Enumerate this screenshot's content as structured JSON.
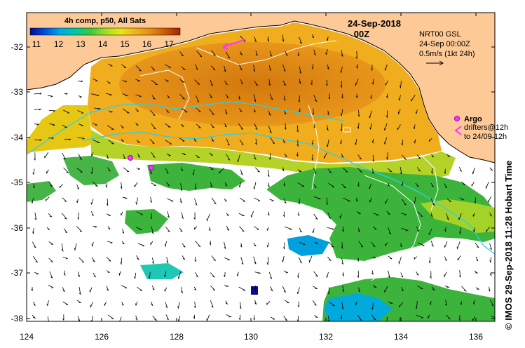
{
  "legend": {
    "title": "4h comp, p50, All Sats",
    "ticks": [
      "11",
      "12",
      "13",
      "14",
      "15",
      "16",
      "17"
    ],
    "colors": [
      "#0a0a8c",
      "#0050dc",
      "#00aae6",
      "#00c8a0",
      "#3cc83c",
      "#a0dc28",
      "#e6e614",
      "#f0b41e",
      "#e68c14",
      "#c85a0a",
      "#aa1e0a"
    ]
  },
  "date": {
    "line1": "24-Sep-2018",
    "line2": "00Z"
  },
  "info": {
    "line1": "NRT00 GSL",
    "line2": "24-Sep 00:00Z",
    "line3": "0.5m/s (1kt 24h)"
  },
  "argo": {
    "label": "Argo",
    "drifters_line1": "drifters@12h",
    "drifters_line2": "to 24/09 12h"
  },
  "axes": {
    "y_ticks": [
      "-32",
      "-33",
      "-34",
      "-35",
      "-36",
      "-37",
      "-38"
    ],
    "x_ticks": [
      "124",
      "126",
      "128",
      "130",
      "132",
      "134",
      "136"
    ]
  },
  "credit": "© IMOS 29-Sep-2018 11:28 Hobart Time",
  "colors": {
    "land": "#fdc996",
    "warm": "#e58f14",
    "mid": "#f0ad1e",
    "green": "#3cb43c",
    "lime": "#a5d228",
    "blue": "#00a0dc"
  }
}
